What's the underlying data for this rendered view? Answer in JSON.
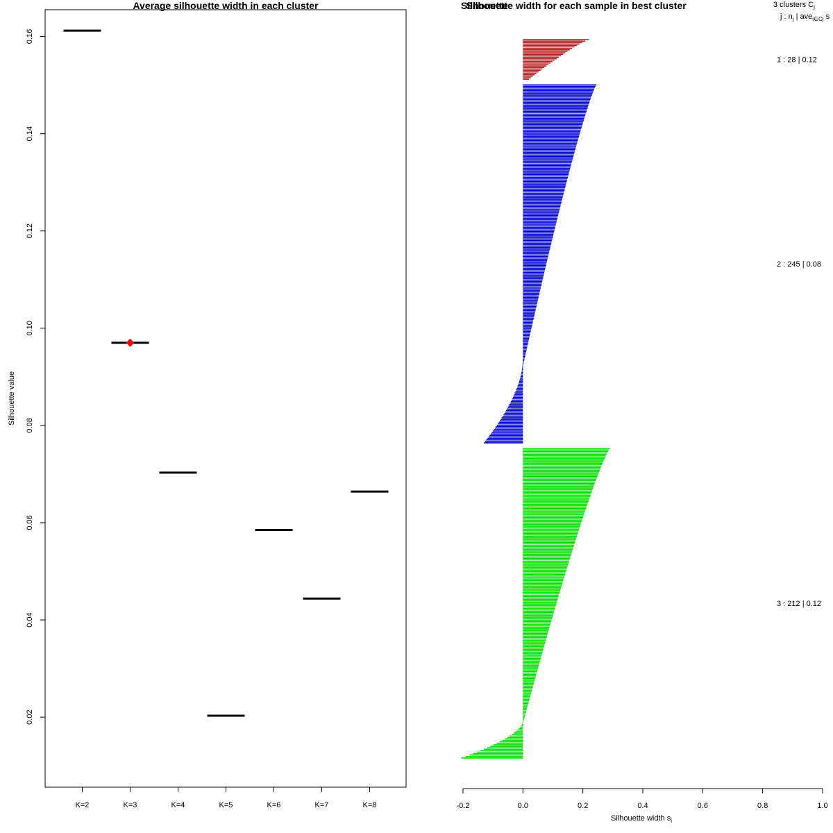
{
  "chart_data": [
    {
      "type": "scatter",
      "title": "Average silhouette width in each cluster",
      "xlabel": "",
      "ylabel": "Silhouette value",
      "categories": [
        "K=2",
        "K=3",
        "K=4",
        "K=5",
        "K=6",
        "K=7",
        "K=8"
      ],
      "values": [
        0.1612,
        0.097,
        0.0703,
        0.0203,
        0.0585,
        0.0444,
        0.0664
      ],
      "highlight_index": 1,
      "highlight_color": "#ff0000",
      "line_color": "#000000",
      "yticks": [
        "0.02",
        "0.04",
        "0.06",
        "0.08",
        "0.10",
        "0.12",
        "0.14",
        "0.16"
      ],
      "ylim": [
        0.0056,
        0.1655
      ]
    },
    {
      "type": "bar",
      "title": "Silhouette width for each sample in best cluster",
      "overlap_title": "Silhouette",
      "xlabel": "Silhouette width s",
      "xlabel_subscript": "i",
      "xticks": [
        "-0.2",
        "0.0",
        "0.2",
        "0.4",
        "0.6",
        "0.8",
        "1.0"
      ],
      "xlim": [
        -0.2,
        1.0
      ],
      "legend_header": {
        "line1": "3  clusters  C",
        "line1_sub": "j",
        "line2": "j :  n",
        "line2_sub1": "j",
        "line2_mid": " | ave",
        "line2_sub2": "i∈Cj",
        "line2_end": "  s"
      },
      "series": [
        {
          "name": "1 :  28  |  0.12",
          "n": 28,
          "color": "#b22222",
          "max": 0.22,
          "min": 0.02,
          "neg_fraction": 0.0
        },
        {
          "name": "2 :  245  |  0.08",
          "n": 245,
          "color": "#0000cd",
          "max": 0.245,
          "min": -0.13,
          "neg_fraction": 0.22
        },
        {
          "name": "3 :  212  |  0.12",
          "n": 212,
          "color": "#00dd00",
          "max": 0.29,
          "min": -0.205,
          "neg_fraction": 0.12
        }
      ]
    }
  ]
}
